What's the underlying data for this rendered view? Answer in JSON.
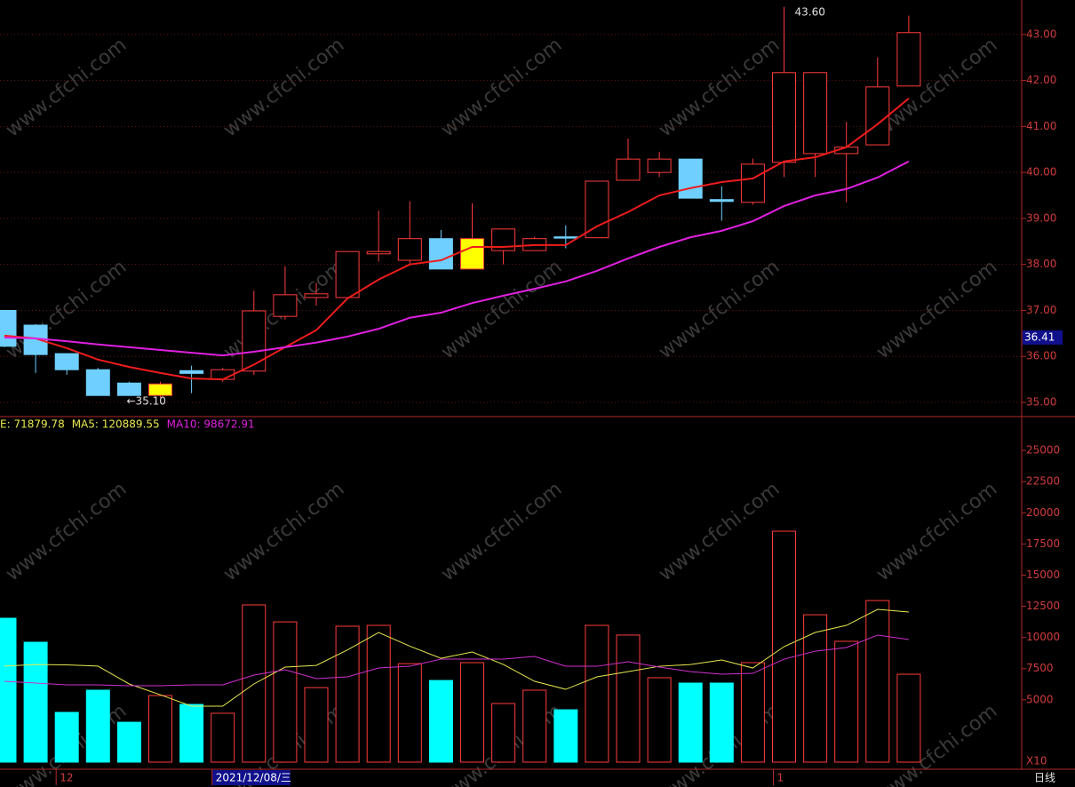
{
  "watermark": "www.cfchi.com",
  "chart_data": [
    {
      "type": "candlestick",
      "open": [
        37.0,
        36.68,
        36.06,
        35.71,
        35.42,
        35.15,
        35.69,
        35.5,
        35.68,
        36.87,
        37.28,
        37.28,
        38.23,
        38.09,
        38.56,
        37.9,
        38.3,
        38.3,
        38.6,
        38.58,
        39.83,
        40.0,
        40.29,
        39.41,
        39.35,
        40.22,
        40.41,
        40.41,
        40.6,
        41.88
      ],
      "high": [
        37.0,
        36.7,
        36.06,
        35.75,
        35.45,
        35.45,
        35.8,
        35.75,
        37.43,
        37.96,
        37.6,
        38.28,
        39.17,
        39.37,
        38.75,
        39.33,
        38.77,
        38.6,
        38.85,
        39.81,
        40.74,
        40.45,
        40.29,
        39.7,
        40.3,
        43.6,
        42.17,
        41.1,
        42.5,
        43.41
      ],
      "low": [
        36.2,
        35.64,
        35.6,
        35.15,
        35.15,
        35.1,
        35.2,
        35.45,
        35.6,
        36.8,
        37.1,
        37.28,
        38.06,
        38.02,
        37.9,
        37.9,
        38.0,
        38.3,
        38.35,
        38.58,
        39.83,
        39.9,
        39.44,
        38.95,
        39.3,
        39.9,
        39.9,
        39.35,
        40.6,
        41.88
      ],
      "close": [
        36.22,
        36.04,
        35.71,
        35.15,
        35.15,
        35.4,
        35.63,
        35.71,
        36.99,
        37.34,
        37.36,
        38.28,
        38.28,
        38.56,
        37.9,
        38.56,
        38.77,
        38.56,
        38.58,
        39.81,
        40.29,
        40.29,
        39.44,
        39.37,
        40.18,
        42.17,
        42.17,
        40.55,
        41.86,
        43.04
      ],
      "candle_colors": [
        null,
        null,
        null,
        null,
        null,
        "#ffff00",
        null,
        null,
        null,
        null,
        null,
        null,
        null,
        null,
        null,
        "#ffff00",
        null,
        null,
        null,
        null,
        null,
        null,
        null,
        null,
        null,
        null,
        null,
        null,
        null,
        null
      ],
      "up_color": "#ff3c3c",
      "down_color": "#6fcfff",
      "series": [
        {
          "name": "MA5",
          "color": "#ee1c1c",
          "values": [
            36.45,
            36.39,
            36.18,
            35.93,
            35.77,
            35.64,
            35.52,
            35.5,
            35.82,
            36.2,
            36.57,
            37.26,
            37.67,
            38.0,
            38.09,
            38.38,
            38.38,
            38.42,
            38.42,
            38.83,
            39.14,
            39.5,
            39.66,
            39.79,
            39.87,
            40.24,
            40.33,
            40.55,
            41.05,
            41.61
          ]
        },
        {
          "name": "MA10",
          "color": "#e020e0",
          "values": [
            36.41,
            36.39,
            36.33,
            36.26,
            36.2,
            36.14,
            36.08,
            36.02,
            36.1,
            36.2,
            36.3,
            36.43,
            36.6,
            36.84,
            36.95,
            37.16,
            37.32,
            37.47,
            37.63,
            37.86,
            38.13,
            38.38,
            38.59,
            38.73,
            38.94,
            39.27,
            39.5,
            39.64,
            39.89,
            40.24
          ]
        }
      ],
      "ylim": [
        34.71,
        43.75
      ],
      "yticks": [
        {
          "value": 35,
          "label": "35.00"
        },
        {
          "value": 36,
          "label": "36.00"
        },
        {
          "value": 37,
          "label": "37.00"
        },
        {
          "value": 38,
          "label": "38.00"
        },
        {
          "value": 39,
          "label": "39.00"
        },
        {
          "value": 40,
          "label": "40.00"
        },
        {
          "value": 41,
          "label": "41.00"
        },
        {
          "value": 42,
          "label": "42.00"
        },
        {
          "value": 43,
          "label": "43.00"
        }
      ],
      "grid": true,
      "annotations": [
        {
          "value": 43.6,
          "label": "43.60",
          "index": 25
        },
        {
          "value": 35.1,
          "label": "←35.10",
          "index": 5
        }
      ],
      "last_price": {
        "value": 36.41,
        "label": "36.41"
      }
    },
    {
      "type": "volume",
      "legend": [
        "E: 71879.78",
        "MA5: 120889.55",
        "MA10: 98672.91"
      ],
      "values": [
        11540,
        9615,
        3990,
        5770,
        3200,
        5340,
        4630,
        3920,
        12610,
        11250,
        5980,
        10900,
        10970,
        7900,
        6550,
        7980,
        4700,
        5770,
        4200,
        10970,
        10190,
        6770,
        6340,
        6340,
        7980,
        18520,
        11820,
        9690,
        12960,
        7050
      ],
      "up_color": "#ff3c3c",
      "down_color": "#00ffff",
      "series": [
        {
          "name": "MA5",
          "color": "#e8e850",
          "values": [
            7700,
            7830,
            7800,
            7700,
            6270,
            5400,
            4490,
            4490,
            6270,
            7620,
            7760,
            9000,
            10400,
            9300,
            8330,
            8830,
            7830,
            6480,
            5840,
            6840,
            7260,
            7690,
            7830,
            8190,
            7550,
            9260,
            10400,
            10970,
            12250,
            12040
          ]
        },
        {
          "name": "MA10",
          "color": "#d030d0",
          "values": [
            6480,
            6340,
            6200,
            6200,
            6130,
            6130,
            6200,
            6200,
            6980,
            7410,
            6700,
            6840,
            7550,
            7690,
            8260,
            8260,
            8260,
            8480,
            7690,
            7690,
            8050,
            7620,
            7260,
            7050,
            7120,
            8260,
            8900,
            9190,
            10190,
            9830
          ]
        }
      ],
      "ylim": [
        0,
        27500
      ],
      "yticks": [
        5000,
        7500,
        10000,
        12500,
        15000,
        17500,
        20000,
        22500,
        25000
      ],
      "scale_label": "X10"
    }
  ],
  "x_axis": {
    "labels": [
      "12",
      "2021/12/08/三",
      "1"
    ],
    "label_index": [
      2,
      7,
      25
    ],
    "period": "日线"
  }
}
